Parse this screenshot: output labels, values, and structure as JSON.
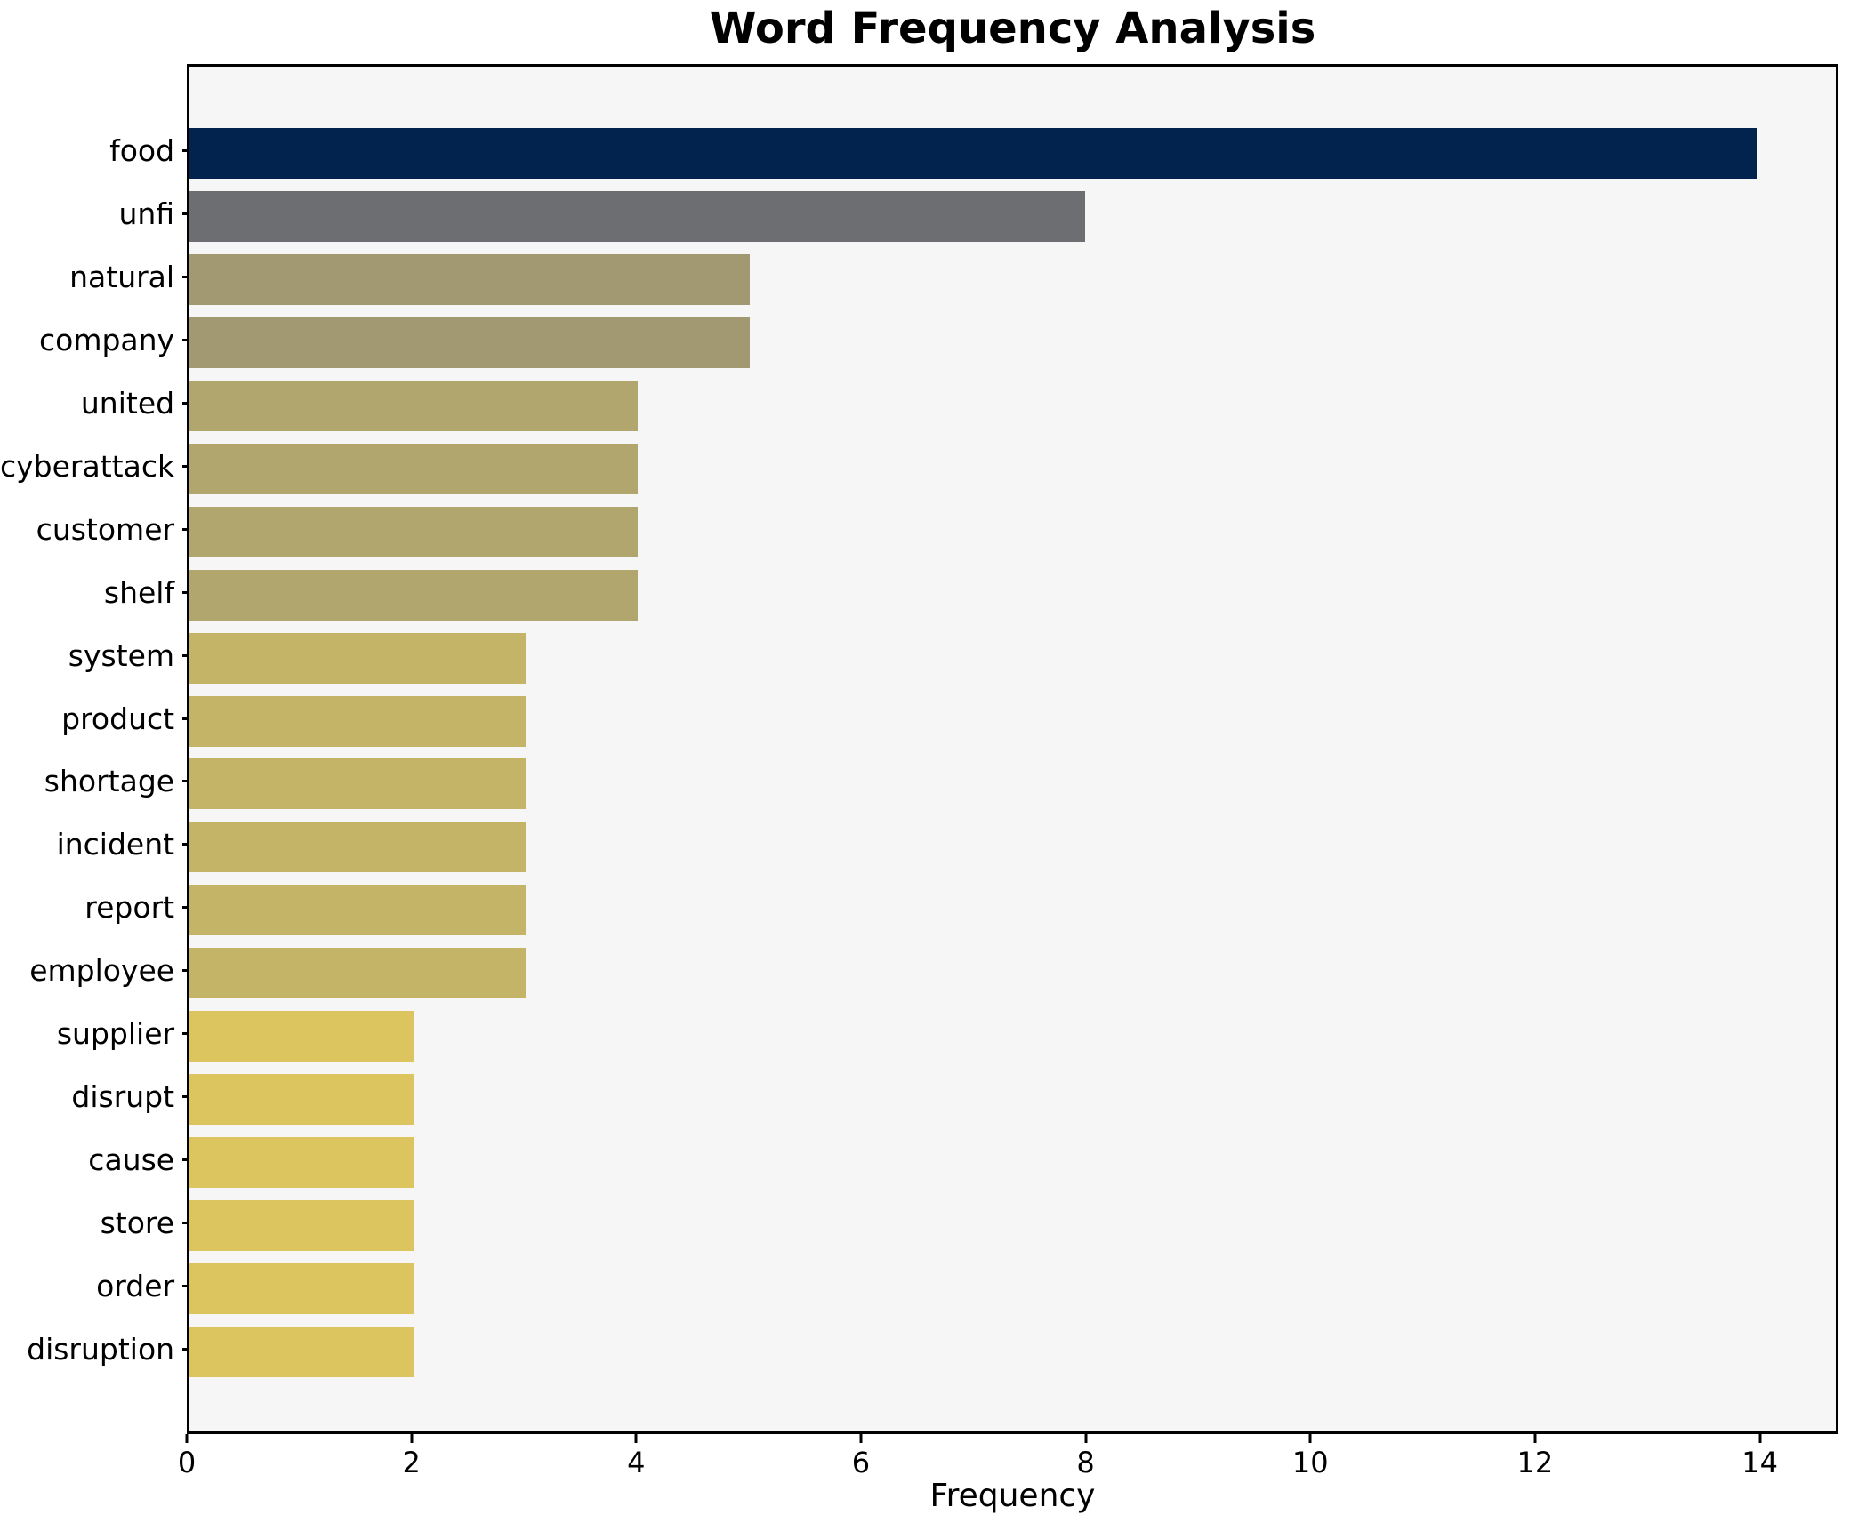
{
  "title": "Word Frequency Analysis",
  "chart_data": {
    "type": "bar",
    "orientation": "horizontal",
    "title": "Word Frequency Analysis",
    "xlabel": "Frequency",
    "ylabel": "",
    "xlim": [
      0,
      14.7
    ],
    "xticks": [
      0,
      2,
      4,
      6,
      8,
      10,
      12,
      14
    ],
    "grid": false,
    "legend": "none",
    "plot_background": "#f6f6f7",
    "categories": [
      "food",
      "unfi",
      "natural",
      "company",
      "united",
      "cyberattack",
      "customer",
      "shelf",
      "system",
      "product",
      "shortage",
      "incident",
      "report",
      "employee",
      "supplier",
      "disrupt",
      "cause",
      "store",
      "order",
      "disruption"
    ],
    "values": [
      14,
      8,
      5,
      5,
      4,
      4,
      4,
      4,
      3,
      3,
      3,
      3,
      3,
      3,
      2,
      2,
      2,
      2,
      2,
      2
    ],
    "bar_colors": [
      "#01234e",
      "#6c6e72",
      "#a29972",
      "#a29972",
      "#b1a76e",
      "#b1a76e",
      "#b1a76e",
      "#b1a76e",
      "#c4b467",
      "#c4b467",
      "#c4b467",
      "#c4b467",
      "#c4b467",
      "#c4b467",
      "#dcc55e",
      "#dcc55e",
      "#dcc55e",
      "#dcc55e",
      "#dcc55e",
      "#dcc55e"
    ]
  }
}
